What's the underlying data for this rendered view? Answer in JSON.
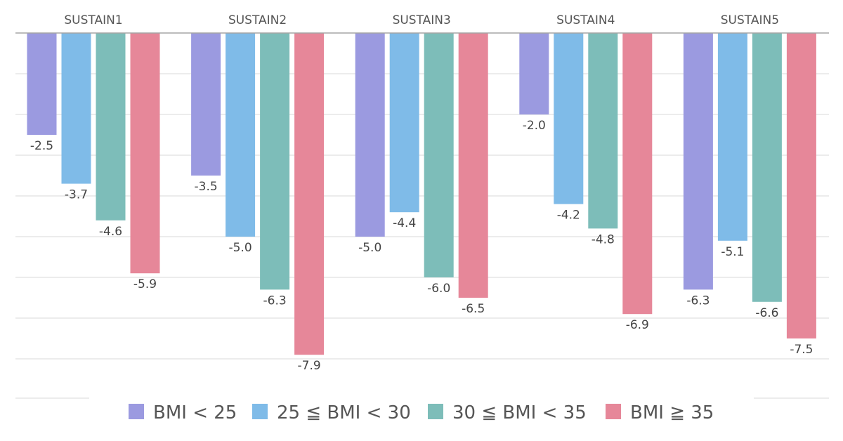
{
  "chart_data": {
    "type": "bar",
    "title": "",
    "xlabel": "",
    "ylabel": "",
    "ylim": [
      -9,
      0
    ],
    "categories": [
      "SUSTAIN1",
      "SUSTAIN2",
      "SUSTAIN3",
      "SUSTAIN4",
      "SUSTAIN5"
    ],
    "series": [
      {
        "name": "BMI < 25",
        "color": "#9b9ae0",
        "values": [
          -2.5,
          -3.5,
          -5.0,
          -2.0,
          -6.3
        ]
      },
      {
        "name": "25 ≦ BMI < 30",
        "color": "#7fbbe8",
        "values": [
          -3.7,
          -5.0,
          -4.4,
          -4.2,
          -5.1
        ]
      },
      {
        "name": "30 ≦ BMI < 35",
        "color": "#7dbdb9",
        "values": [
          -4.6,
          -6.3,
          -6.0,
          -4.8,
          -6.6
        ]
      },
      {
        "name": "BMI ≧ 35",
        "color": "#e68799",
        "values": [
          -5.9,
          -7.9,
          -6.5,
          -6.9,
          -7.5
        ]
      }
    ],
    "data_labels": true,
    "grid": true,
    "legend_position": "bottom"
  }
}
